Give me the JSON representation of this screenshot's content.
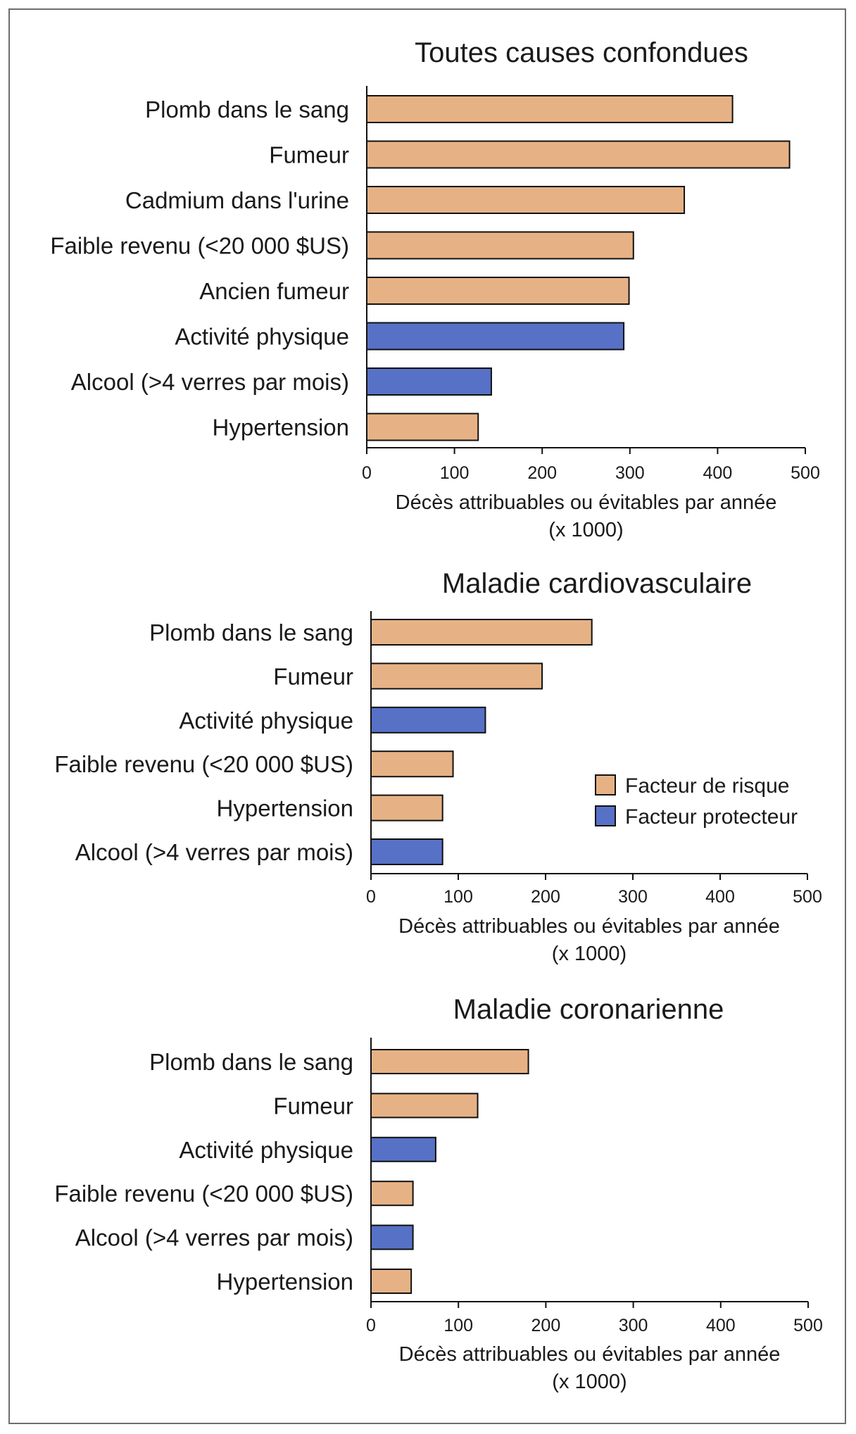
{
  "colors": {
    "risk": "#E6B285",
    "protective": "#5671C6",
    "outline": "#111111"
  },
  "legend": {
    "risk_label": "Facteur de risque",
    "protective_label": "Facteur protecteur"
  },
  "chart_data": [
    {
      "type": "bar",
      "orientation": "horizontal",
      "title": "Toutes causes confondues",
      "xlabel_line1": "Décès attribuables ou évitables par année",
      "xlabel_line2": "(x 1000)",
      "xlim": [
        0,
        500
      ],
      "xticks": [
        0,
        100,
        200,
        300,
        400,
        500
      ],
      "categories": [
        "Plomb dans le sang",
        "Fumeur",
        "Cadmium dans l'urine",
        "Faible revenu (<20 000 $US)",
        "Ancien fumeur",
        "Activité physique",
        "Alcool (>4 verres par mois)",
        "Hypertension"
      ],
      "values": [
        417,
        482,
        362,
        304,
        299,
        293,
        142,
        127
      ],
      "kind": [
        "risk",
        "risk",
        "risk",
        "risk",
        "risk",
        "protective",
        "protective",
        "risk"
      ]
    },
    {
      "type": "bar",
      "orientation": "horizontal",
      "title": "Maladie cardiovasculaire",
      "xlabel_line1": "Décès attribuables ou évitables par année",
      "xlabel_line2": "(x 1000)",
      "xlim": [
        0,
        500
      ],
      "xticks": [
        0,
        100,
        200,
        300,
        400,
        500
      ],
      "categories": [
        "Plomb dans le sang",
        "Fumeur",
        "Activité physique",
        "Faible revenu (<20 000 $US)",
        "Hypertension",
        "Alcool (>4 verres par mois)"
      ],
      "values": [
        253,
        196,
        131,
        94,
        82,
        82
      ],
      "kind": [
        "risk",
        "risk",
        "protective",
        "risk",
        "risk",
        "protective"
      ]
    },
    {
      "type": "bar",
      "orientation": "horizontal",
      "title": "Maladie coronarienne",
      "xlabel_line1": "Décès attribuables ou évitables par année",
      "xlabel_line2": "(x 1000)",
      "xlim": [
        0,
        500
      ],
      "xticks": [
        0,
        100,
        200,
        300,
        400,
        500
      ],
      "categories": [
        "Plomb dans le sang",
        "Fumeur",
        "Activité physique",
        "Faible revenu (<20 000 $US)",
        "Alcool (>4 verres par mois)",
        "Hypertension"
      ],
      "values": [
        180,
        122,
        74,
        48,
        48,
        46
      ],
      "kind": [
        "risk",
        "risk",
        "protective",
        "risk",
        "protective",
        "risk"
      ]
    }
  ]
}
